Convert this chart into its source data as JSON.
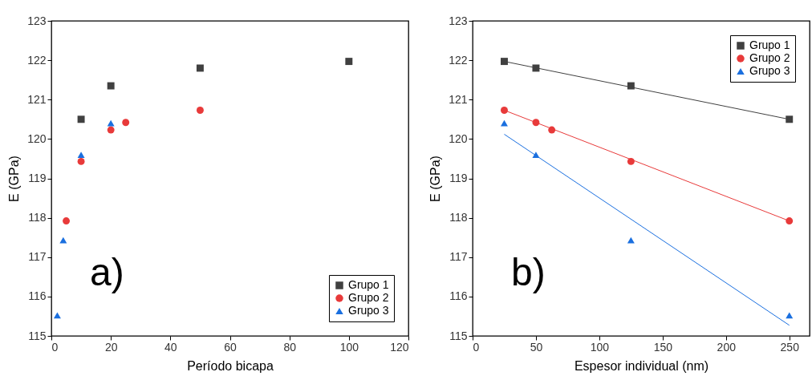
{
  "chart_data": [
    {
      "type": "scatter",
      "xlabel": "Período bicapa",
      "ylabel": "E (GPa)",
      "xlim": [
        0,
        120
      ],
      "xticks": [
        0,
        20,
        40,
        60,
        80,
        100,
        120
      ],
      "ylim": [
        115,
        123
      ],
      "yticks": [
        115,
        116,
        117,
        118,
        119,
        120,
        121,
        122,
        123
      ],
      "legend": "bottom right",
      "annotations": [
        "a)"
      ],
      "series": [
        {
          "name": "Grupo 1",
          "color": "#404040",
          "marker": "square",
          "x": [
            10,
            20,
            50,
            100
          ],
          "values": [
            120.5,
            121.35,
            121.8,
            121.97
          ]
        },
        {
          "name": "Grupo 2",
          "color": "#e83a3a",
          "marker": "circle",
          "x": [
            5,
            10,
            20,
            25,
            50
          ],
          "values": [
            117.92,
            119.43,
            120.23,
            120.42,
            120.73
          ]
        },
        {
          "name": "Grupo 3",
          "color": "#1a6fdf",
          "marker": "triangle",
          "x": [
            2,
            4,
            10,
            20
          ],
          "values": [
            115.52,
            117.43,
            119.6,
            120.4
          ]
        }
      ]
    },
    {
      "type": "scatter",
      "xlabel": "Espesor individual (nm)",
      "ylabel": "E (GPa)",
      "xlim": [
        0,
        266
      ],
      "xticks": [
        0,
        50,
        100,
        150,
        200,
        250
      ],
      "ylim": [
        115,
        123
      ],
      "yticks": [
        115,
        116,
        117,
        118,
        119,
        120,
        121,
        122,
        123
      ],
      "legend": "top right",
      "annotations": [
        "b)"
      ],
      "series": [
        {
          "name": "Grupo 1",
          "color": "#404040",
          "marker": "square",
          "x": [
            25,
            50,
            125,
            250
          ],
          "values": [
            121.97,
            121.8,
            121.35,
            120.5
          ]
        },
        {
          "name": "Grupo 2",
          "color": "#e83a3a",
          "marker": "circle",
          "x": [
            25,
            50,
            62.5,
            125,
            250
          ],
          "values": [
            120.73,
            120.42,
            120.23,
            119.43,
            117.92
          ]
        },
        {
          "name": "Grupo 3",
          "color": "#1a6fdf",
          "marker": "triangle",
          "x": [
            25,
            50,
            125,
            250
          ],
          "values": [
            120.4,
            119.6,
            117.43,
            115.52
          ]
        },
        {
          "type": "line",
          "color": "#404040",
          "x": [
            25,
            250
          ],
          "values": [
            121.97,
            120.5
          ]
        },
        {
          "type": "line",
          "color": "#e83a3a",
          "x": [
            25,
            250
          ],
          "values": [
            120.73,
            117.92
          ]
        },
        {
          "type": "line",
          "color": "#1a6fdf",
          "x": [
            25,
            250
          ],
          "values": [
            120.12,
            115.27
          ]
        }
      ]
    }
  ]
}
